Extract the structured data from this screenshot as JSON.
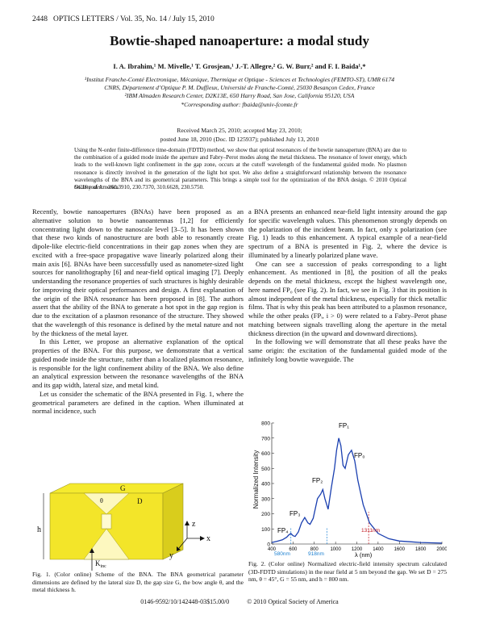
{
  "header": {
    "page_number": "2448",
    "journal": "OPTICS LETTERS / Vol. 35, No. 14 / July 15, 2010"
  },
  "title": "Bowtie-shaped nanoaperture: a modal study",
  "authors": "I. A. Ibrahim,¹ M. Mivelle,¹ T. Grosjean,¹ J.-T. Allegre,² G. W. Burr,² and F. I. Baida¹,*",
  "affiliations": [
    "¹Institut Franche-Comté Electronique, Mécanique, Thermique et Optique - Sciences et Technologies (FEMTO-ST), UMR 6174",
    "CNRS, Département d’Optique P. M. Duffieux, Université de Franche-Comté, 25030 Besançon Cedex, France",
    "²IBM Almaden Research Center, D2K13E, 650 Harry Road, San Jose, California 95120, USA",
    "*Corresponding author: fbaida@univ-fcomte.fr"
  ],
  "dates": [
    "Received March 25, 2010; accepted May 23, 2010;",
    "posted June 18, 2010 (Doc. ID 125937); published July 13, 2010"
  ],
  "abstract": "Using the N-order finite-difference time-domain (FDTD) method, we show that optical resonances of the bowtie nanoaperture (BNA) are due to the combination of a guided mode inside the aperture and Fabry–Perot modes along the metal thickness. The resonance of lower energy, which leads to the well-known light confinement in the gap zone, occurs at the cutoff wavelength of the fundamental guided mode. No plasmon resonance is directly involved in the generation of the light hot spot. We also define a straightforward relationship between the resonance wavelengths of the BNA and its geometrical parameters. This brings a simple tool for the optimization of the BNA design.  © 2010 Optical Society of America",
  "ocis": {
    "label": "OCIS codes:",
    "codes": "260.3910, 230.7370, 310.6628, 230.5750."
  },
  "left_column": [
    "Recently, bowtie nanoapertures (BNAs) have been proposed as an alternative solution to bowtie nanoantennas [1,2] for efficiently concentrating light down to the nanoscale level [3–5]. It has been shown that these two kinds of nanostructure are both able to resonantly create dipole-like electric-field concentrations in their gap zones when they are excited with a free-space propagative wave linearly polarized along their main axis [6]. BNAs have been successfully used as nanometer-sized light sources for nanolithography [6] and near-field optical imaging [7]. Deeply understanding the resonance properties of such structures is highly desirable for improving their optical performances and design. A first explanation of the origin of the BNA resonance has been proposed in [8]. The authors assert that the ability of the BNA to generate a hot spot in the gap region is due to the excitation of a plasmon resonance of the structure. They showed that the wavelength of this resonance is defined by the metal nature and not by the thickness of the metal layer.",
    "In this Letter, we propose an alternative explanation of the optical properties of the BNA. For this purpose, we demonstrate that a vertical guided mode inside the structure, rather than a localized plasmon resonance, is responsible for the light confinement ability of the BNA. We also define an analytical expression between the resonance wavelengths of the BNA and its gap width, lateral size, and metal kind.",
    "Let us consider the schematic of the BNA presented in Fig. 1, where the geometrical parameters are defined in the caption. When illuminated at normal incidence, such"
  ],
  "right_column": [
    "a BNA presents an enhanced near-field light intensity around the gap for specific wavelength values. This phenomenon strongly depends on the polarization of the incident beam. In fact, only x polarization (see Fig. 1) leads to this enhancement. A typical example of a near-field spectrum of a BNA is presented in Fig. 2, where the device is illuminated by a linearly polarized plane wave.",
    "One can see a succession of peaks corresponding to a light enhancement. As mentioned in [8], the position of all the peaks depends on the metal thickness, except the highest wavelength one, here named FP₀ (see Fig. 2). In fact, we see in Fig. 3 that its position is almost independent of the metal thickness, especially for thick metallic films. That is why this peak has been attributed to a plasmon resonance, while the other peaks (FPᵢ, i > 0) were related to a Fabry–Perot phase matching between signals travelling along the aperture in the metal thickness direction (in the upward and downward directions).",
    "In the following we will demonstrate that all these peaks have the same origin: the excitation of the fundamental guided mode of the infinitely long bowtie waveguide. The"
  ],
  "figure1": {
    "labels": {
      "G": "G",
      "theta": "θ",
      "D": "D",
      "h": "h",
      "z": "z",
      "x": "x",
      "y": "y",
      "k": "K",
      "kinc": "inc"
    },
    "caption": "Fig. 1.    (Color online) Scheme of the BNA. The BNA geometrical parameter dimensions are defined by the lateral size D, the gap size G, the bow angle θ, and the metal thickness h.",
    "colors": {
      "metal": "#f5ea2e",
      "edge": "#9a9420"
    }
  },
  "figure2": {
    "caption": "Fig. 2.    (Color online) Normalized electric-field intensity spectrum calculated (3D-FDTD simulations) in the near field at 5 nm beyond the gap. We set D = 275 nm, θ = 45°, G = 55 nm, and h = 800 nm.",
    "peak_labels": [
      "FP₄",
      "FP₃",
      "FP₂",
      "FP₁",
      "FP₀"
    ],
    "markers": [
      "580nm",
      "918nm",
      "1311nm"
    ]
  },
  "chart_data": {
    "type": "line",
    "title": "",
    "xlabel": "λ (nm)",
    "ylabel": "Normalized Intensity",
    "xticks": [
      "400",
      "600",
      "800",
      "1000",
      "1200",
      "1400",
      "1600",
      "1800",
      "2000"
    ],
    "yticks": [
      "0",
      "100",
      "200",
      "300",
      "400",
      "500",
      "600",
      "700",
      "800"
    ],
    "xlim": [
      400,
      2000
    ],
    "ylim": [
      0,
      800
    ],
    "grid": false,
    "vlines": [
      580,
      918,
      1311
    ],
    "series": [
      {
        "x": [
          400,
          450,
          500,
          540,
          560,
          580,
          600,
          620,
          650,
          680,
          710,
          740,
          760,
          790,
          830,
          860,
          880,
          900,
          930,
          960,
          990,
          1010,
          1030,
          1050,
          1070,
          1090,
          1120,
          1150,
          1180,
          1210,
          1260,
          1320,
          1400,
          1500,
          1600,
          1700,
          1800,
          1900,
          2000
        ],
        "y": [
          10,
          18,
          28,
          45,
          60,
          70,
          55,
          50,
          80,
          140,
          175,
          140,
          130,
          170,
          300,
          330,
          360,
          300,
          230,
          370,
          500,
          620,
          700,
          650,
          520,
          500,
          590,
          620,
          550,
          420,
          260,
          140,
          70,
          35,
          20,
          15,
          10,
          8,
          6
        ]
      }
    ]
  },
  "footer": {
    "code": "0146-9592/10/142448-03$15.00/0",
    "copyright": "© 2010 Optical Society of America"
  }
}
